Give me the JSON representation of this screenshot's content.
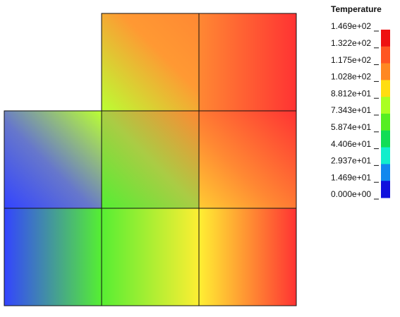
{
  "legend": {
    "title": "Temperature",
    "labels": [
      "1.469e+02",
      "1.322e+02",
      "1.175e+02",
      "1.028e+02",
      "8.812e+01",
      "7.343e+01",
      "5.874e+01",
      "4.406e+01",
      "2.937e+01",
      "1.469e+01",
      "0.000e+00"
    ],
    "colors": [
      "#ee1111",
      "#ff5522",
      "#ff8822",
      "#ffdd11",
      "#aaff22",
      "#55ee22",
      "#11dd55",
      "#11eecc",
      "#1188ee",
      "#1111dd"
    ]
  }
}
